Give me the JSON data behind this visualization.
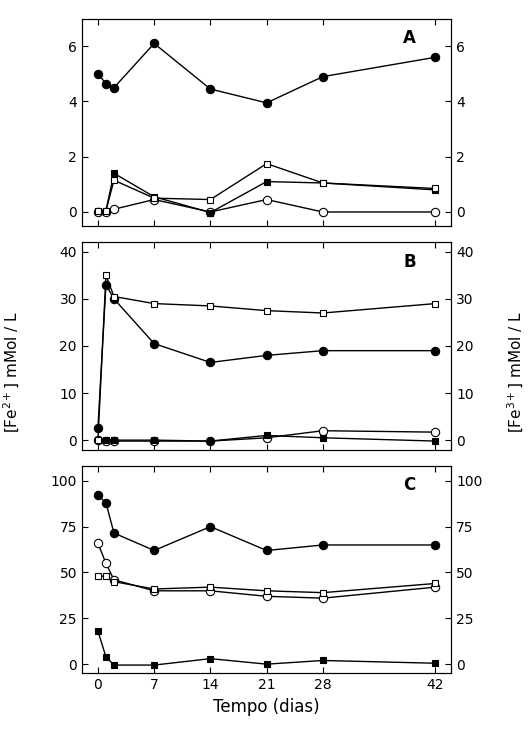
{
  "panel_A": {
    "label": "A",
    "filled_circle": {
      "x": [
        0,
        1,
        2,
        7,
        14,
        21,
        28,
        42
      ],
      "y": [
        5.0,
        4.65,
        4.5,
        6.1,
        4.45,
        3.95,
        4.9,
        5.6
      ]
    },
    "open_circle": {
      "x": [
        0,
        1,
        2,
        7,
        14,
        21,
        28,
        42
      ],
      "y": [
        0.0,
        0.0,
        0.1,
        0.45,
        0.0,
        0.45,
        0.0,
        0.0
      ]
    },
    "filled_square": {
      "x": [
        0,
        1,
        2,
        7,
        14,
        21,
        28,
        42
      ],
      "y": [
        0.05,
        0.05,
        1.4,
        0.55,
        -0.02,
        1.1,
        1.05,
        0.8
      ]
    },
    "open_square": {
      "x": [
        0,
        1,
        2,
        7,
        14,
        21,
        28,
        42
      ],
      "y": [
        0.05,
        0.05,
        1.15,
        0.5,
        0.45,
        1.75,
        1.05,
        0.85
      ]
    },
    "ylim_left": [
      -0.5,
      7
    ],
    "ylim_right": [
      -0.5,
      7
    ],
    "yticks_left": [
      0,
      2,
      4,
      6
    ],
    "yticks_right": [
      0,
      2,
      4,
      6
    ]
  },
  "panel_B": {
    "label": "B",
    "filled_circle": {
      "x": [
        0,
        1,
        2,
        7,
        14,
        21,
        28,
        42
      ],
      "y": [
        2.5,
        33.0,
        30.0,
        20.5,
        16.5,
        18.0,
        19.0,
        19.0
      ]
    },
    "open_circle": {
      "x": [
        0,
        1,
        2,
        7,
        14,
        21,
        28,
        42
      ],
      "y": [
        0.0,
        -0.2,
        -0.2,
        -0.2,
        -0.2,
        0.5,
        2.0,
        1.7
      ]
    },
    "filled_square": {
      "x": [
        0,
        1,
        2,
        7,
        14,
        21,
        28,
        42
      ],
      "y": [
        0.0,
        0.0,
        0.0,
        0.0,
        -0.2,
        1.0,
        0.5,
        -0.2
      ]
    },
    "open_square": {
      "x": [
        0,
        1,
        2,
        7,
        14,
        21,
        28,
        42
      ],
      "y": [
        0.0,
        35.0,
        30.5,
        29.0,
        28.5,
        27.5,
        27.0,
        29.0
      ]
    },
    "ylim_left": [
      -2,
      42
    ],
    "ylim_right": [
      -2,
      42
    ],
    "yticks_left": [
      0,
      10,
      20,
      30,
      40
    ],
    "yticks_right": [
      0,
      10,
      20,
      30,
      40
    ]
  },
  "panel_C": {
    "label": "C",
    "filled_circle": {
      "x": [
        0,
        1,
        2,
        7,
        14,
        21,
        28,
        42
      ],
      "y": [
        92.0,
        88.0,
        71.5,
        62.0,
        75.0,
        62.0,
        65.0,
        65.0
      ]
    },
    "open_circle": {
      "x": [
        0,
        1,
        2,
        7,
        14,
        21,
        28,
        42
      ],
      "y": [
        66.0,
        55.0,
        46.0,
        40.0,
        40.0,
        37.0,
        36.0,
        42.0
      ]
    },
    "filled_square": {
      "x": [
        0,
        1,
        2,
        7,
        14,
        21,
        28,
        42
      ],
      "y": [
        18.0,
        4.0,
        -0.5,
        -0.5,
        3.0,
        0.0,
        2.0,
        0.5
      ]
    },
    "open_square": {
      "x": [
        0,
        1,
        2,
        7,
        14,
        21,
        28,
        42
      ],
      "y": [
        48.0,
        48.0,
        45.0,
        41.0,
        42.0,
        40.0,
        39.0,
        44.0
      ]
    },
    "ylim_left": [
      -5,
      108
    ],
    "ylim_right": [
      -5,
      108
    ],
    "yticks_left": [
      0,
      25,
      50,
      75,
      100
    ],
    "yticks_right": [
      0,
      25,
      50,
      75,
      100
    ]
  },
  "xlabel": "Tempo (dias)",
  "ylabel_left": "[Fe$^{2+}$] mMol / L",
  "ylabel_right": "[Fe$^{3+}$] mMol / L",
  "xticks": [
    0,
    7,
    14,
    21,
    28,
    42
  ],
  "xlim": [
    -2,
    44
  ],
  "line_color": "black",
  "marker_size": 6,
  "square_size": 5,
  "linewidth": 1.0,
  "tick_labelsize": 10,
  "xlabel_fontsize": 12,
  "panel_label_fontsize": 12
}
